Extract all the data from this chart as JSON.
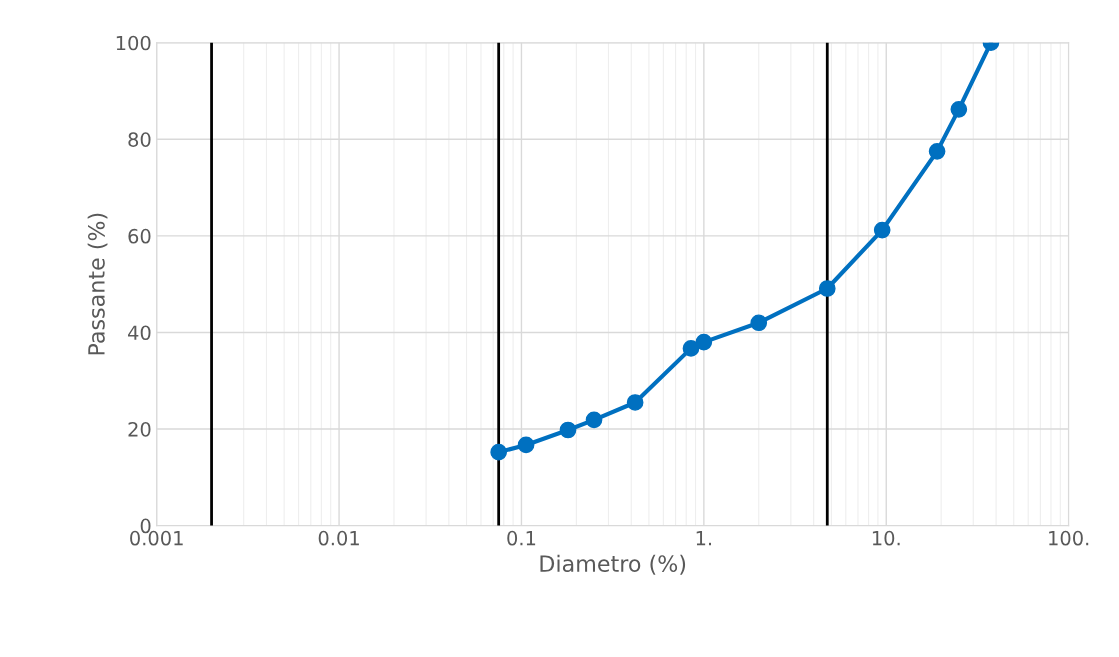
{
  "chart_data": {
    "type": "line",
    "xlabel": "Diametro (%)",
    "ylabel": "Passante (%)",
    "log": "x",
    "grid": true,
    "marker": "circle",
    "line_style": "solid",
    "xlim": [
      0.001,
      100
    ],
    "xticks": [
      0.001,
      0.01,
      0.1,
      {
        "value": 1,
        "label": "1."
      },
      {
        "value": 10,
        "label": "10."
      },
      {
        "value": 100,
        "label": "100."
      }
    ],
    "ylim": [
      0,
      100
    ],
    "yticks": [
      0,
      20,
      40,
      60,
      80,
      100
    ],
    "series": [
      {
        "color": "#0070c0",
        "x": [
          0.075,
          0.106,
          0.18,
          0.25,
          0.42,
          0.85,
          1.0,
          2.0,
          4.75,
          9.5,
          19,
          25,
          37.5
        ],
        "values": [
          15.2,
          16.7,
          19.8,
          21.9,
          25.5,
          36.7,
          38.0,
          42.0,
          49.1,
          61.2,
          77.5,
          86.2,
          100
        ]
      }
    ],
    "ref_lines": [
      {
        "axis": "x",
        "value": 0.002,
        "color": "#000000"
      },
      {
        "axis": "x",
        "value": 0.075,
        "color": "#000000"
      },
      {
        "axis": "x",
        "value": 4.75,
        "color": "#000000"
      }
    ]
  }
}
